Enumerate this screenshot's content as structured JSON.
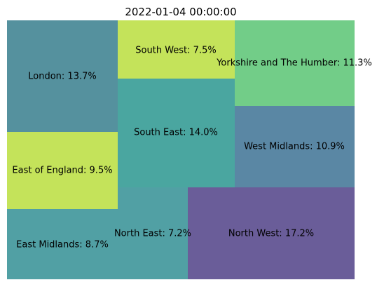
{
  "chart_data": {
    "type": "treemap",
    "title": "2022-01-04 00:00:00",
    "grid": false,
    "axes_visible": false,
    "tiles": [
      {
        "label": "London: 13.7%",
        "name": "London",
        "value": 13.7,
        "color": "#55919e"
      },
      {
        "label": "East of England: 9.5%",
        "name": "East of England",
        "value": 9.5,
        "color": "#c4e35a"
      },
      {
        "label": "East Midlands: 8.7%",
        "name": "East Midlands",
        "value": 8.7,
        "color": "#51a0a4"
      },
      {
        "label": "South West: 7.5%",
        "name": "South West",
        "value": 7.5,
        "color": "#c4e35a"
      },
      {
        "label": "South East: 14.0%",
        "name": "South East",
        "value": 14.0,
        "color": "#4aa6a0"
      },
      {
        "label": "North East: 7.2%",
        "name": "North East",
        "value": 7.2,
        "color": "#51a0a4"
      },
      {
        "label": "Yorkshire and The Humber: 11.3%",
        "name": "Yorkshire and The Humber",
        "value": 11.3,
        "color": "#72cd88"
      },
      {
        "label": "West Midlands: 10.9%",
        "name": "West Midlands",
        "value": 10.9,
        "color": "#5a87a4"
      },
      {
        "label": "North West: 17.2%",
        "name": "North West",
        "value": 17.2,
        "color": "#6a5d99"
      }
    ]
  }
}
